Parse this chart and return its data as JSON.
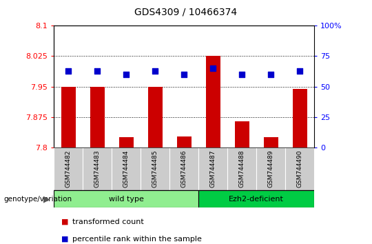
{
  "title": "GDS4309 / 10466374",
  "samples": [
    "GSM744482",
    "GSM744483",
    "GSM744484",
    "GSM744485",
    "GSM744486",
    "GSM744487",
    "GSM744488",
    "GSM744489",
    "GSM744490"
  ],
  "transformed_count": [
    7.95,
    7.95,
    7.825,
    7.95,
    7.828,
    8.025,
    7.865,
    7.825,
    7.945
  ],
  "percentile_rank": [
    63,
    63,
    60,
    63,
    60,
    65,
    60,
    60,
    63
  ],
  "ylim_left": [
    7.8,
    8.1
  ],
  "ylim_right": [
    0,
    100
  ],
  "yticks_left": [
    7.8,
    7.875,
    7.95,
    8.025,
    8.1
  ],
  "yticks_right": [
    0,
    25,
    50,
    75,
    100
  ],
  "ytick_labels_left": [
    "7.8",
    "7.875",
    "7.95",
    "8.025",
    "8.1"
  ],
  "ytick_labels_right": [
    "0",
    "25",
    "50",
    "75",
    "100%"
  ],
  "groups": [
    {
      "label": "wild type",
      "indices": [
        0,
        1,
        2,
        3,
        4
      ],
      "color": "#90EE90"
    },
    {
      "label": "Ezh2-deficient",
      "indices": [
        5,
        6,
        7,
        8
      ],
      "color": "#00CC44"
    }
  ],
  "bar_color": "#CC0000",
  "dot_color": "#0000CC",
  "bar_width": 0.5,
  "dot_size": 40,
  "legend_bar_label": "transformed count",
  "legend_dot_label": "percentile rank within the sample",
  "genotype_label": "genotype/variation",
  "tick_bg_color": "#cccccc",
  "grid_dotline_color": "#000000",
  "wild_type_color": "#b3f0b3",
  "ezh2_color": "#33cc33"
}
